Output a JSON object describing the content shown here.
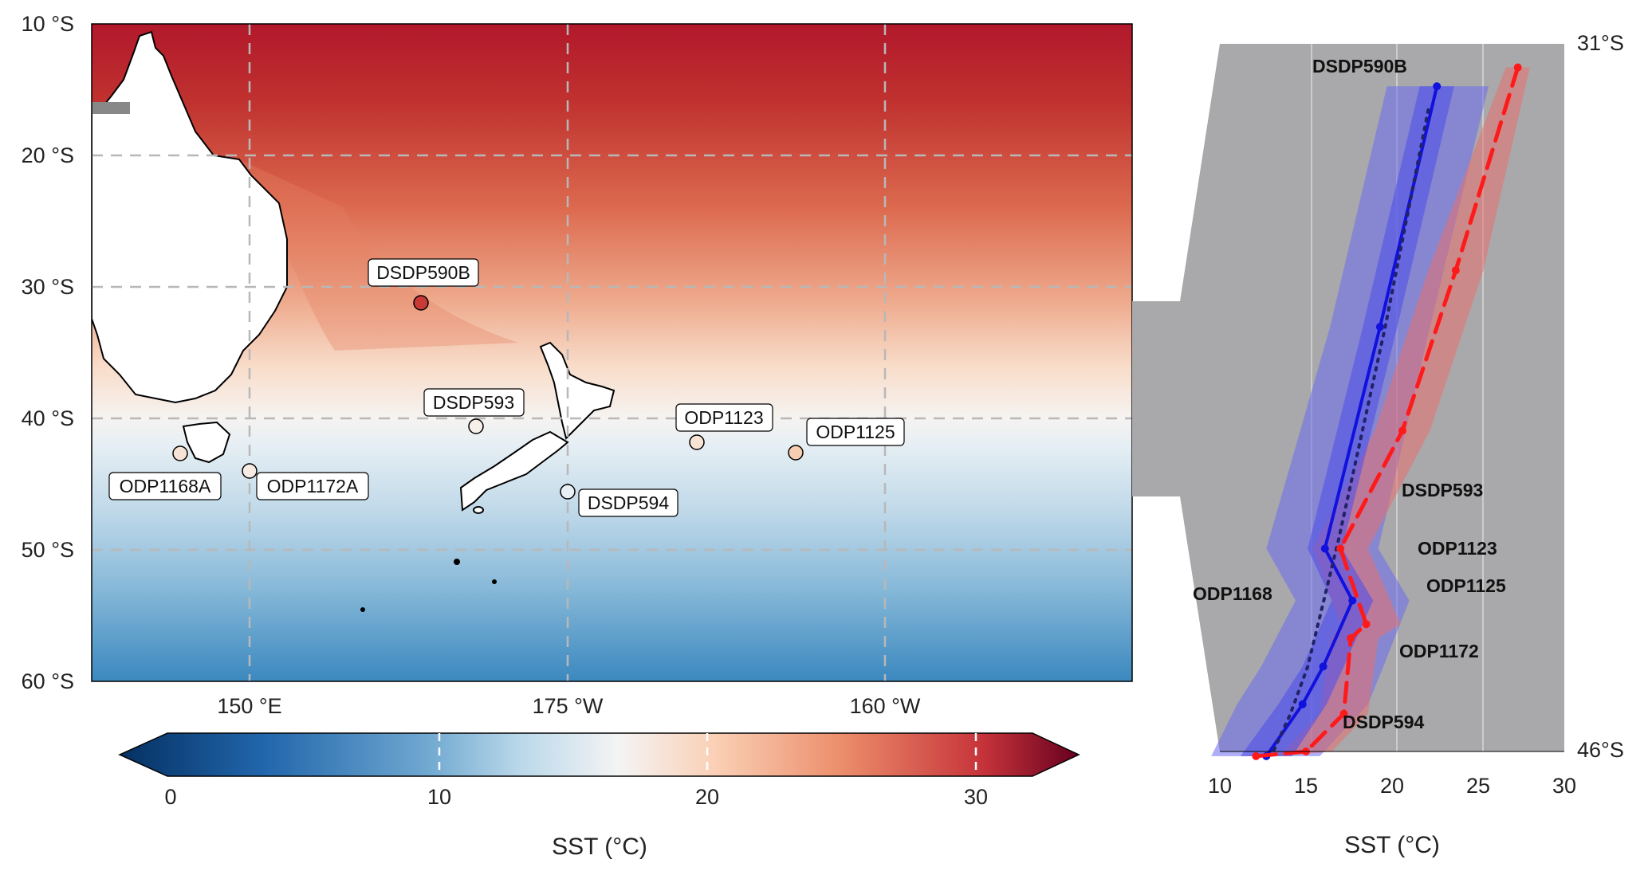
{
  "map": {
    "lat_labels": [
      "10 °S",
      "20 °S",
      "30 °S",
      "40 °S",
      "50 °S",
      "60 °S"
    ],
    "lon_labels": [
      "150 °E",
      "175 °W",
      "160 °W"
    ],
    "sites": [
      {
        "name": "DSDP590B",
        "lat": -31.2,
        "lon": 163.4,
        "sst": 26.3
      },
      {
        "name": "DSDP593",
        "lat": -40.5,
        "lon": 167.7,
        "sst": 17.5
      },
      {
        "name": "ODP1123",
        "lat": -41.8,
        "lon": -171.5,
        "sst": 17.0
      },
      {
        "name": "ODP1125",
        "lat": -42.5,
        "lon": -178.5,
        "sst": 18.5
      },
      {
        "name": "ODP1168A",
        "lat": -42.6,
        "lon": 144.4,
        "sst": 17.0
      },
      {
        "name": "ODP1172A",
        "lat": -43.9,
        "lon": 149.9,
        "sst": 16.5
      },
      {
        "name": "DSDP594",
        "lat": -45.5,
        "lon": 174.9,
        "sst": 14.0
      }
    ]
  },
  "colorbar": {
    "min": -1.5,
    "max": 32.5,
    "ticks": [
      "0",
      "10",
      "20",
      "30"
    ],
    "label": "SST (°C)"
  },
  "profile": {
    "top_label": "31°S",
    "bottom_label": "46°S",
    "x_ticks": [
      "10",
      "15",
      "20",
      "25",
      "30"
    ],
    "xlabel": "SST (°C)",
    "site_labels": [
      "DSDP590B",
      "DSDP593",
      "ODP1123",
      "ODP1125",
      "ODP1168",
      "ODP1172",
      "DSDP594"
    ]
  },
  "chart_data": {
    "type": "line",
    "xlabel": "SST (°C)",
    "xlim": [
      10,
      30
    ],
    "ylim": [
      31,
      46
    ],
    "y_axis": "latitude (°S)",
    "series": [
      {
        "style": "solid",
        "color": "#1111dd",
        "points": [
          [
            22.6,
            31.9
          ],
          [
            19.3,
            37.0
          ],
          [
            16.1,
            41.7
          ],
          [
            17.7,
            42.8
          ],
          [
            16.0,
            44.2
          ],
          [
            14.8,
            45.0
          ],
          [
            12.7,
            46.1
          ]
        ],
        "band_inner": [
          [
            21.6,
            23.6
          ],
          [
            18.3,
            20.3
          ],
          [
            15.1,
            17.1
          ],
          [
            16.5,
            18.9
          ],
          [
            14.8,
            17.2
          ],
          [
            13.4,
            16.2
          ],
          [
            11.2,
            14.2
          ]
        ],
        "band_outer": [
          [
            19.7,
            25.6
          ],
          [
            16.4,
            22.2
          ],
          [
            12.7,
            19.2
          ],
          [
            14.4,
            21.0
          ],
          [
            12.4,
            19.5
          ],
          [
            11.0,
            18.6
          ],
          [
            9.5,
            15.8
          ]
        ]
      },
      {
        "style": "dotted",
        "color": "#222266",
        "points": [
          [
            22.1,
            32.4
          ],
          [
            19.6,
            37.0
          ],
          [
            16.9,
            41.5
          ],
          [
            16.1,
            42.7
          ],
          [
            15.1,
            44.2
          ],
          [
            14.1,
            45.2
          ],
          [
            13.1,
            46.0
          ]
        ]
      },
      {
        "style": "dashed",
        "color": "#ff1a1a",
        "points": [
          [
            27.3,
            31.5
          ],
          [
            23.7,
            35.8
          ],
          [
            20.6,
            39.2
          ],
          [
            17.0,
            41.7
          ],
          [
            18.5,
            43.3
          ],
          [
            17.6,
            43.6
          ],
          [
            17.2,
            45.2
          ],
          [
            15.0,
            46.0
          ],
          [
            12.1,
            46.1
          ]
        ],
        "band": [
          [
            26.6,
            28.0
          ],
          [
            22.1,
            25.3
          ],
          [
            19.0,
            22.2
          ],
          [
            15.4,
            18.6
          ],
          [
            17.0,
            20.5
          ],
          [
            16.4,
            19.2
          ],
          [
            15.8,
            18.6
          ],
          [
            13.7,
            16.5
          ],
          [
            11.2,
            13.5
          ]
        ]
      }
    ]
  }
}
